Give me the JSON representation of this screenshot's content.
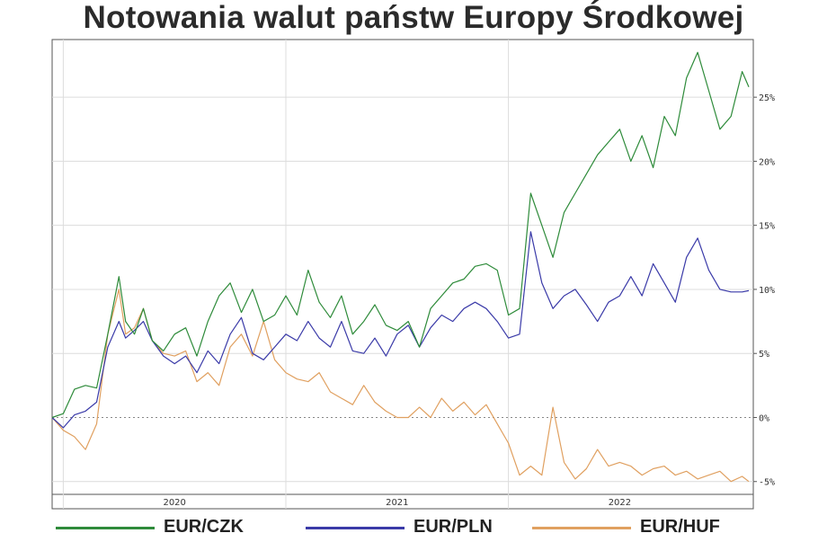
{
  "title": "Notowania walut państw Europy Środkowej",
  "chart_data": {
    "type": "line",
    "title": "Notowania walut państw Europy Środkowej",
    "xlabel": "",
    "ylabel": "",
    "x_ticks": [
      "2020",
      "2021",
      "2022"
    ],
    "y_ticks": [
      -5,
      0,
      5,
      10,
      15,
      20,
      25
    ],
    "y_tick_labels": [
      "-5%",
      "0%",
      "5%",
      "10%",
      "15%",
      "20%",
      "25%"
    ],
    "ylim": [
      -6,
      29.5
    ],
    "xlim": [
      2019.45,
      2022.6
    ],
    "grid": true,
    "legend_position": "bottom",
    "zero_line": "dotted",
    "series": [
      {
        "name": "EUR/CZK",
        "color": "#2e8b3a",
        "x": [
          2019.45,
          2019.5,
          2019.55,
          2019.6,
          2019.65,
          2019.7,
          2019.75,
          2019.78,
          2019.82,
          2019.86,
          2019.9,
          2019.95,
          2020.0,
          2020.05,
          2020.1,
          2020.15,
          2020.2,
          2020.25,
          2020.3,
          2020.35,
          2020.4,
          2020.45,
          2020.5,
          2020.55,
          2020.6,
          2020.65,
          2020.7,
          2020.75,
          2020.8,
          2020.85,
          2020.9,
          2020.95,
          2021.0,
          2021.05,
          2021.1,
          2021.15,
          2021.2,
          2021.25,
          2021.3,
          2021.35,
          2021.4,
          2021.45,
          2021.5,
          2021.55,
          2021.6,
          2021.65,
          2021.7,
          2021.75,
          2021.8,
          2021.85,
          2021.9,
          2021.95,
          2022.0,
          2022.05,
          2022.1,
          2022.15,
          2022.2,
          2022.25,
          2022.3,
          2022.35,
          2022.4,
          2022.45,
          2022.5,
          2022.55,
          2022.58
        ],
        "values": [
          0,
          0.3,
          2.2,
          2.5,
          2.3,
          6.5,
          11.0,
          7.5,
          6.5,
          8.5,
          6.0,
          5.2,
          6.5,
          7.0,
          4.8,
          7.5,
          9.5,
          10.5,
          8.2,
          10.0,
          7.5,
          8.0,
          9.5,
          8.0,
          11.5,
          9.0,
          7.8,
          9.5,
          6.5,
          7.5,
          8.8,
          7.2,
          6.8,
          7.5,
          5.5,
          8.5,
          9.5,
          10.5,
          10.8,
          11.8,
          12.0,
          11.5,
          8.0,
          8.5,
          17.5,
          15.0,
          12.5,
          16.0,
          17.5,
          19.0,
          20.5,
          21.5,
          22.5,
          20.0,
          22.0,
          19.5,
          23.5,
          22.0,
          26.5,
          28.5,
          25.5,
          22.5,
          23.5,
          27.0,
          25.8
        ]
      },
      {
        "name": "EUR/PLN",
        "color": "#3a3aa8",
        "x": [
          2019.45,
          2019.5,
          2019.55,
          2019.6,
          2019.65,
          2019.7,
          2019.75,
          2019.78,
          2019.82,
          2019.86,
          2019.9,
          2019.95,
          2020.0,
          2020.05,
          2020.1,
          2020.15,
          2020.2,
          2020.25,
          2020.3,
          2020.35,
          2020.4,
          2020.45,
          2020.5,
          2020.55,
          2020.6,
          2020.65,
          2020.7,
          2020.75,
          2020.8,
          2020.85,
          2020.9,
          2020.95,
          2021.0,
          2021.05,
          2021.1,
          2021.15,
          2021.2,
          2021.25,
          2021.3,
          2021.35,
          2021.4,
          2021.45,
          2021.5,
          2021.55,
          2021.6,
          2021.65,
          2021.7,
          2021.75,
          2021.8,
          2021.85,
          2021.9,
          2021.95,
          2022.0,
          2022.05,
          2022.1,
          2022.15,
          2022.2,
          2022.25,
          2022.3,
          2022.35,
          2022.4,
          2022.45,
          2022.5,
          2022.55,
          2022.58
        ],
        "values": [
          0,
          -0.8,
          0.2,
          0.5,
          1.2,
          5.5,
          7.5,
          6.2,
          6.8,
          7.5,
          6.0,
          4.8,
          4.2,
          4.8,
          3.5,
          5.2,
          4.2,
          6.5,
          7.8,
          5.0,
          4.5,
          5.5,
          6.5,
          6.0,
          7.5,
          6.2,
          5.5,
          7.5,
          5.2,
          5.0,
          6.2,
          4.8,
          6.5,
          7.2,
          5.5,
          7.0,
          8.0,
          7.5,
          8.5,
          9.0,
          8.5,
          7.5,
          6.2,
          6.5,
          14.5,
          10.5,
          8.5,
          9.5,
          10.0,
          8.8,
          7.5,
          9.0,
          9.5,
          11.0,
          9.5,
          12.0,
          10.5,
          9.0,
          12.5,
          14.0,
          11.5,
          10.0,
          9.8,
          9.8,
          9.9
        ]
      },
      {
        "name": "EUR/HUF",
        "color": "#e0a060",
        "x": [
          2019.45,
          2019.5,
          2019.55,
          2019.6,
          2019.65,
          2019.7,
          2019.75,
          2019.78,
          2019.82,
          2019.86,
          2019.9,
          2019.95,
          2020.0,
          2020.05,
          2020.1,
          2020.15,
          2020.2,
          2020.25,
          2020.3,
          2020.35,
          2020.4,
          2020.45,
          2020.5,
          2020.55,
          2020.6,
          2020.65,
          2020.7,
          2020.75,
          2020.8,
          2020.85,
          2020.9,
          2020.95,
          2021.0,
          2021.05,
          2021.1,
          2021.15,
          2021.2,
          2021.25,
          2021.3,
          2021.35,
          2021.4,
          2021.45,
          2021.5,
          2021.55,
          2021.6,
          2021.65,
          2021.7,
          2021.75,
          2021.8,
          2021.85,
          2021.9,
          2021.95,
          2022.0,
          2022.05,
          2022.1,
          2022.15,
          2022.2,
          2022.25,
          2022.3,
          2022.35,
          2022.4,
          2022.45,
          2022.5,
          2022.55,
          2022.58
        ],
        "values": [
          0,
          -1.0,
          -1.5,
          -2.5,
          -0.5,
          6.5,
          10.0,
          6.5,
          7.0,
          8.5,
          6.0,
          5.0,
          4.8,
          5.2,
          2.8,
          3.5,
          2.5,
          5.5,
          6.5,
          4.8,
          7.5,
          4.5,
          3.5,
          3.0,
          2.8,
          3.5,
          2.0,
          1.5,
          1.0,
          2.5,
          1.2,
          0.5,
          0,
          0,
          0.8,
          0,
          1.5,
          0.5,
          1.2,
          0.2,
          1.0,
          -0.5,
          -2.0,
          -4.5,
          -3.8,
          -4.5,
          0.8,
          -3.5,
          -4.8,
          -4.0,
          -2.5,
          -3.8,
          -3.5,
          -3.8,
          -4.5,
          -4.0,
          -3.8,
          -4.5,
          -4.2,
          -4.8,
          -4.5,
          -4.2,
          -5.0,
          -4.6,
          -5.0
        ]
      }
    ]
  }
}
